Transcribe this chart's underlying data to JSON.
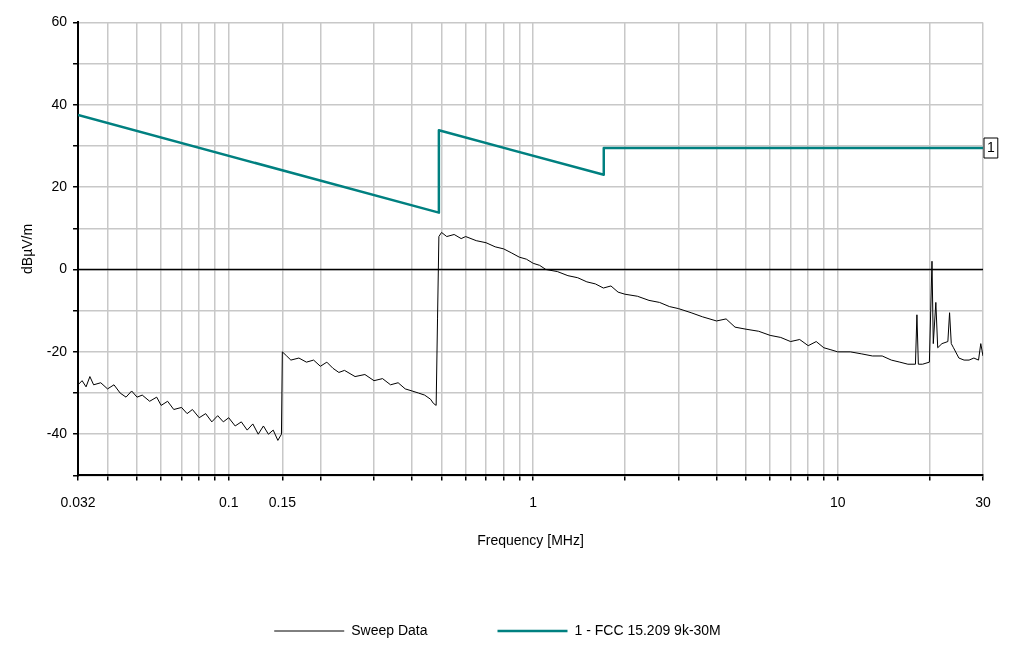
{
  "chart_data": {
    "type": "line",
    "xlabel": "Frequency [MHz]",
    "ylabel": "dBµV/m",
    "log": "x",
    "grid": true,
    "legend": "bottom",
    "marker": "none",
    "line_style": "solid",
    "xlim": [
      0.032,
      30
    ],
    "ylim": [
      -50,
      60
    ],
    "xticks": [
      0.032,
      {
        "value": 0.04,
        "label": null
      },
      {
        "value": 0.05,
        "label": null
      },
      {
        "value": 0.06,
        "label": null
      },
      {
        "value": 0.07,
        "label": null
      },
      {
        "value": 0.08,
        "label": null
      },
      {
        "value": 0.09,
        "label": null
      },
      0.1,
      0.15,
      {
        "value": 0.2,
        "label": null
      },
      {
        "value": 0.3,
        "label": null
      },
      {
        "value": 0.4,
        "label": null
      },
      {
        "value": 0.5,
        "label": null
      },
      {
        "value": 0.6,
        "label": null
      },
      {
        "value": 0.7,
        "label": null
      },
      {
        "value": 0.8,
        "label": null
      },
      {
        "value": 0.9,
        "label": null
      },
      1,
      {
        "value": 2,
        "label": null
      },
      {
        "value": 3,
        "label": null
      },
      {
        "value": 4,
        "label": null
      },
      {
        "value": 5,
        "label": null
      },
      {
        "value": 6,
        "label": null
      },
      {
        "value": 7,
        "label": null
      },
      {
        "value": 8,
        "label": null
      },
      {
        "value": 9,
        "label": null
      },
      10,
      {
        "value": 20,
        "label": null
      },
      30
    ],
    "yticks": [
      {
        "value": -50,
        "label": null
      },
      -40,
      {
        "value": -30,
        "label": null
      },
      -20,
      {
        "value": -10,
        "label": null
      },
      0,
      {
        "value": 10,
        "label": null
      },
      20,
      {
        "value": 30,
        "label": null
      },
      40,
      {
        "value": 50,
        "label": null
      },
      60
    ],
    "ref_lines": [
      {
        "axis": "y",
        "value": 0,
        "color": "#000000"
      }
    ],
    "annotations": [
      {
        "text": "1",
        "x": 30,
        "y": 29.5
      }
    ],
    "series": [
      {
        "name": "Sweep Data",
        "color": "#000000",
        "x": [
          0.032,
          0.033,
          0.034,
          0.035,
          0.036,
          0.038,
          0.04,
          0.042,
          0.044,
          0.046,
          0.048,
          0.05,
          0.052,
          0.055,
          0.058,
          0.06,
          0.063,
          0.066,
          0.07,
          0.073,
          0.076,
          0.08,
          0.084,
          0.088,
          0.092,
          0.096,
          0.1,
          0.105,
          0.11,
          0.115,
          0.12,
          0.125,
          0.13,
          0.135,
          0.14,
          0.145,
          0.149,
          0.15,
          0.155,
          0.16,
          0.17,
          0.18,
          0.19,
          0.2,
          0.21,
          0.22,
          0.23,
          0.24,
          0.26,
          0.28,
          0.3,
          0.32,
          0.34,
          0.36,
          0.38,
          0.4,
          0.42,
          0.44,
          0.46,
          0.47,
          0.48,
          0.485,
          0.49,
          0.5,
          0.52,
          0.55,
          0.58,
          0.6,
          0.65,
          0.7,
          0.75,
          0.8,
          0.85,
          0.9,
          0.95,
          1,
          1.05,
          1.1,
          1.2,
          1.3,
          1.4,
          1.5,
          1.6,
          1.7,
          1.8,
          1.9,
          2,
          2.2,
          2.4,
          2.6,
          2.8,
          3,
          3.3,
          3.6,
          4,
          4.3,
          4.6,
          5,
          5.5,
          6,
          6.5,
          7,
          7.5,
          8,
          8.5,
          9,
          9.5,
          10,
          11,
          12,
          13,
          14,
          15,
          16,
          17,
          18,
          18.2,
          18.4,
          19,
          20,
          20.4,
          20.6,
          21,
          21.3,
          22,
          23,
          23.3,
          23.6,
          24,
          25,
          26,
          27,
          28,
          29,
          29.5,
          30
        ],
        "values": [
          -28,
          -27,
          -28.5,
          -26,
          -28,
          -27.5,
          -29,
          -28,
          -30,
          -31,
          -29.5,
          -31,
          -30.5,
          -32,
          -31,
          -33,
          -32,
          -34,
          -33.5,
          -35,
          -34,
          -36,
          -35,
          -37,
          -35.5,
          -37,
          -36,
          -38,
          -37,
          -39,
          -37.5,
          -40,
          -38,
          -40,
          -39,
          -41.5,
          -40,
          -20,
          -21,
          -22,
          -21.5,
          -22.5,
          -22,
          -23.5,
          -22.5,
          -24,
          -25,
          -24.5,
          -26,
          -25.5,
          -27,
          -26.5,
          -28,
          -27.5,
          -29,
          -29.5,
          -30,
          -30.5,
          -31.5,
          -32.5,
          -33,
          -12,
          8,
          9,
          8,
          8.5,
          7.5,
          8,
          7,
          6.5,
          5.5,
          5,
          4,
          3,
          2.5,
          1.5,
          1,
          0,
          -0.5,
          -1.5,
          -2,
          -3,
          -3.5,
          -4.5,
          -4,
          -5.5,
          -6,
          -6.5,
          -7.5,
          -8,
          -9,
          -9.5,
          -10.5,
          -11.5,
          -12.5,
          -12,
          -14,
          -14.5,
          -15,
          -16,
          -16.5,
          -17.5,
          -17,
          -18.5,
          -17.5,
          -19,
          -19.5,
          -20,
          -20,
          -20.5,
          -21,
          -21,
          -22,
          -22.5,
          -23,
          -23,
          -11,
          -23,
          -23,
          -22.5,
          2,
          -18,
          -8,
          -19,
          -18,
          -17.5,
          -10.5,
          -18,
          -19,
          -21.5,
          -22,
          -22,
          -21.5,
          -22,
          -18,
          -21
        ]
      },
      {
        "name": "1 - FCC 15.209 9k-30M",
        "color": "#008080",
        "x": [
          0.032,
          0.49,
          0.49,
          1.705,
          1.705,
          30
        ],
        "values": [
          37.5,
          13.8,
          33.8,
          23,
          29.5,
          29.5
        ]
      }
    ]
  }
}
